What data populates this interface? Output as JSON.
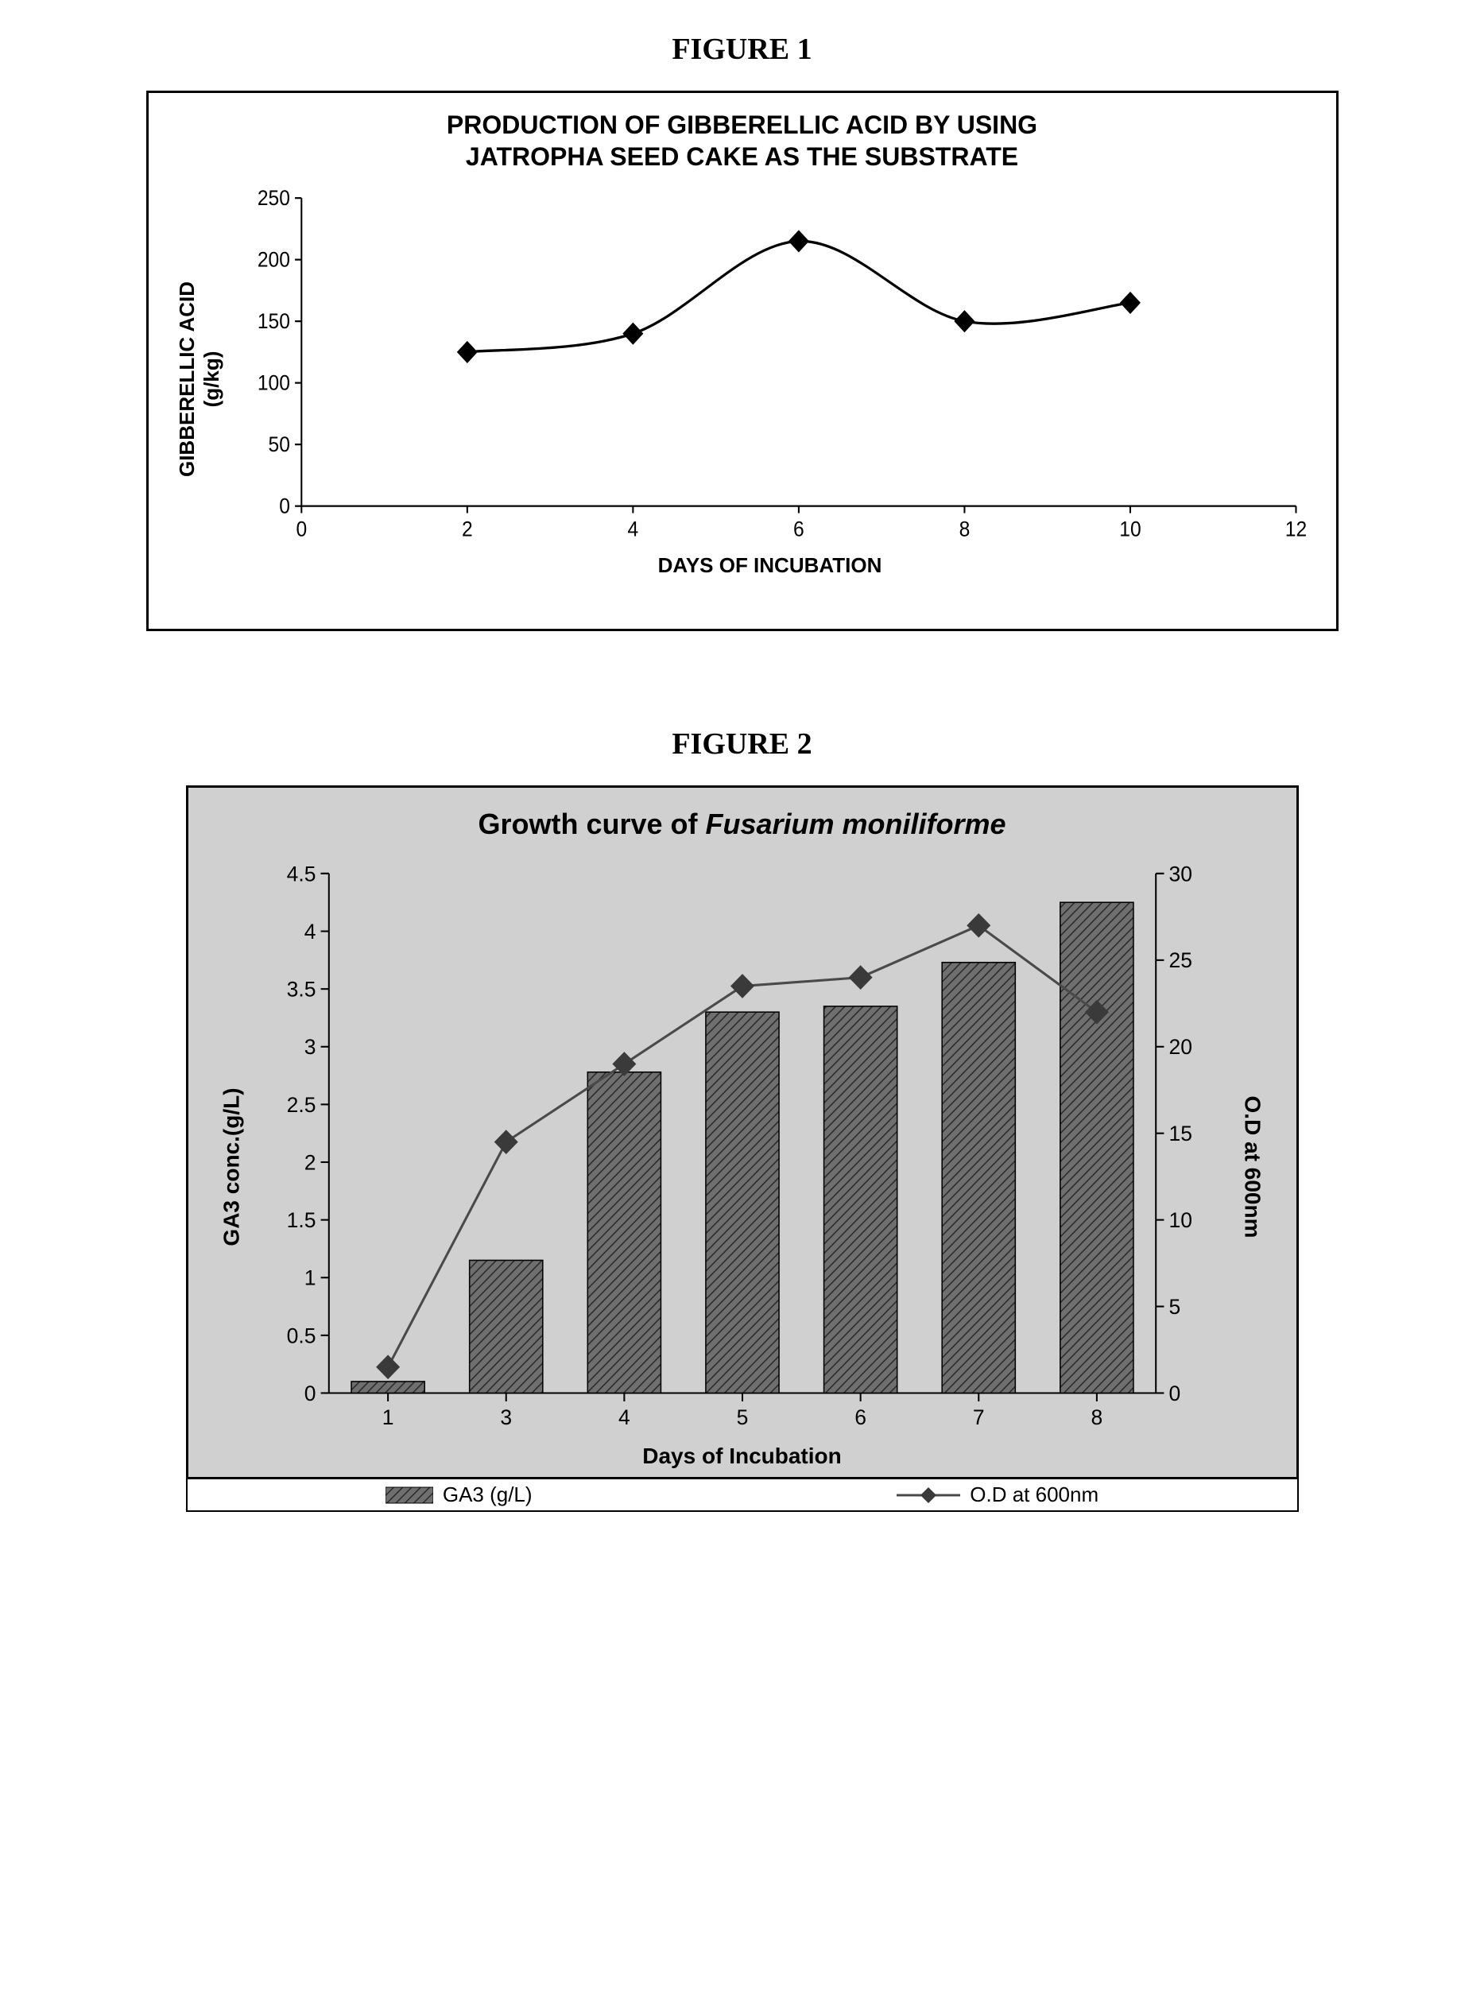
{
  "figure1": {
    "label": "FIGURE 1",
    "title_line1": "PRODUCTION OF GIBBERELLIC ACID BY USING",
    "title_line2": "JATROPHA SEED CAKE AS THE SUBSTRATE",
    "xlabel": "DAYS OF INCUBATION",
    "ylabel_line1": "GIBBERELLIC ACID",
    "ylabel_line2": "(g/kg)",
    "chart": {
      "type": "line",
      "xlim": [
        0,
        12
      ],
      "ylim": [
        0,
        250
      ],
      "xtick_step": 2,
      "ytick_step": 50,
      "background_color": "#ffffff",
      "axis_color": "#000000",
      "line_color": "#000000",
      "line_width": 3,
      "marker_shape": "diamond",
      "marker_size": 12,
      "marker_color": "#000000",
      "tick_fontsize": 24,
      "x": [
        2,
        4,
        6,
        8,
        10
      ],
      "y": [
        125,
        140,
        215,
        150,
        165
      ]
    }
  },
  "figure2": {
    "label": "FIGURE 2",
    "title_prefix": "Growth curve of ",
    "title_italic": "Fusarium moniliforme",
    "xlabel": "Days of Incubation",
    "ylabel": "GA3 conc.(g/L)",
    "y2label": "O.D at 600nm",
    "legend": {
      "bar_label": "GA3 (g/L)",
      "line_label": "O.D at 600nm"
    },
    "chart": {
      "type": "bar+line",
      "categories": [
        "1",
        "3",
        "4",
        "5",
        "6",
        "7",
        "8"
      ],
      "bars": [
        0.1,
        1.15,
        2.78,
        3.3,
        3.35,
        3.73,
        4.25
      ],
      "line": [
        1.5,
        14.5,
        19.0,
        23.5,
        24.0,
        27.0,
        22.0
      ],
      "ylim": [
        0,
        4.5
      ],
      "ytick_step": 0.5,
      "y2lim": [
        0,
        30
      ],
      "y2tick_step": 5,
      "background_color": "#d0d0d0",
      "bar_fill": "#6f6f6f",
      "bar_hatch_color": "#2a2a2a",
      "bar_border": "#000000",
      "bar_width_ratio": 0.62,
      "axis_color": "#000000",
      "line_color": "#4a4a4a",
      "line_width": 3,
      "marker_shape": "diamond",
      "marker_size": 14,
      "marker_color": "#3a3a3a",
      "tick_fontsize": 26,
      "tick_len": 10
    }
  }
}
